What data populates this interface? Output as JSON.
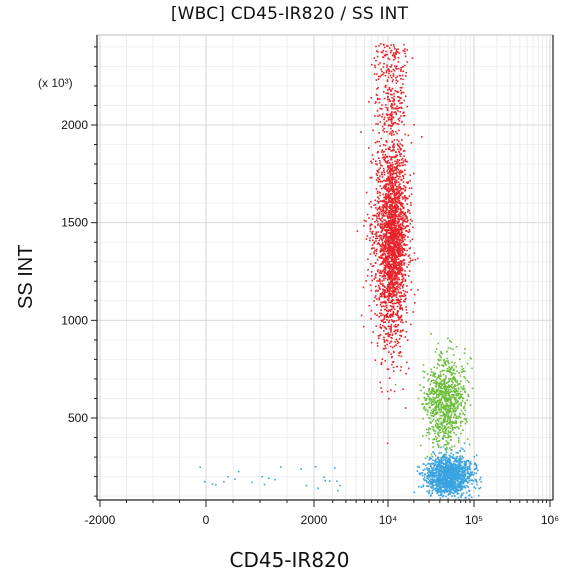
{
  "chart_data": {
    "type": "scatter",
    "title": "[WBC] CD45-IR820 / SS INT",
    "xlabel": "CD45-IR820",
    "ylabel": "SS INT",
    "y_scale_note": "(x 10³)",
    "x_scale": "logicle",
    "xlim": [
      -2000,
      1000000
    ],
    "ylim": [
      80,
      2450
    ],
    "y_ticks": [
      {
        "value": 500,
        "label": "500"
      },
      {
        "value": 1000,
        "label": "1000"
      },
      {
        "value": 1500,
        "label": "1500"
      },
      {
        "value": 2000,
        "label": "2000"
      }
    ],
    "x_ticks": [
      {
        "value": -2000,
        "label": "-2000"
      },
      {
        "value": 0,
        "label": "0"
      },
      {
        "value": 2000,
        "label": "2000"
      },
      {
        "value": 10000,
        "label": "10⁴"
      },
      {
        "value": 100000,
        "label": "10⁵"
      },
      {
        "value": 1000000,
        "label": "10⁶"
      }
    ],
    "grid": true,
    "legend": "none",
    "series": [
      {
        "color": "#e8232a",
        "center": [
          11000,
          1420
        ],
        "spread_log10": [
          0.09,
          0.28
        ],
        "spread_y": [
          0,
          0
        ],
        "n": 2600,
        "shape": "tall-ellipse",
        "y_range": [
          900,
          2300
        ]
      },
      {
        "color": "#6bbf3a",
        "center": [
          45000,
          590
        ],
        "spread_log10": [
          0.12,
          0
        ],
        "spread_y": [
          0,
          110
        ],
        "n": 900
      },
      {
        "color": "#3aa3e0",
        "center": [
          50000,
          210
        ],
        "spread_log10": [
          0.13,
          0
        ],
        "spread_y": [
          0,
          50
        ],
        "n": 1400
      },
      {
        "color": "#3aa3e0",
        "center": [
          0,
          150
        ],
        "n": 25,
        "scatter": "low-background"
      }
    ],
    "colors": {
      "red": "#e8232a",
      "green": "#6bbf3a",
      "blue": "#3aa3e0",
      "grid": "#e3e3e3",
      "frame": "#222222"
    }
  }
}
